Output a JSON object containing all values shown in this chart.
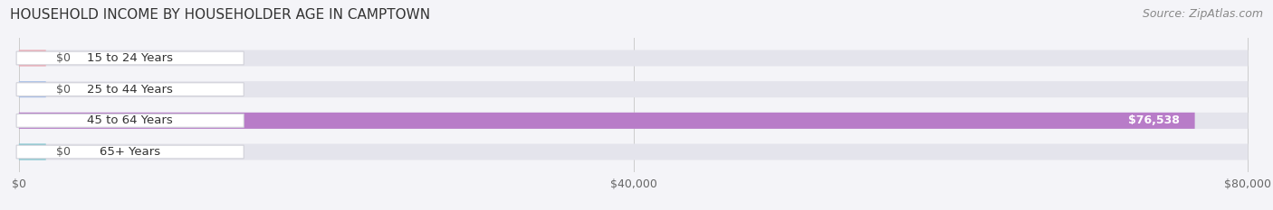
{
  "title": "HOUSEHOLD INCOME BY HOUSEHOLDER AGE IN CAMPTOWN",
  "source": "Source: ZipAtlas.com",
  "categories": [
    "15 to 24 Years",
    "25 to 44 Years",
    "45 to 64 Years",
    "65+ Years"
  ],
  "values": [
    0,
    0,
    76538,
    0
  ],
  "bar_colors": [
    "#f0a0aa",
    "#a8c0e8",
    "#b87cc8",
    "#74c4cc"
  ],
  "value_labels": [
    "$0",
    "$0",
    "$76,538",
    "$0"
  ],
  "xlim_max": 80000,
  "xticks": [
    0,
    40000,
    80000
  ],
  "xtick_labels": [
    "$0",
    "$40,000",
    "$80,000"
  ],
  "background_color": "#f4f4f8",
  "bar_bg_color": "#e4e4ec",
  "title_fontsize": 11,
  "source_fontsize": 9,
  "label_fontsize": 9.5,
  "value_fontsize": 9
}
